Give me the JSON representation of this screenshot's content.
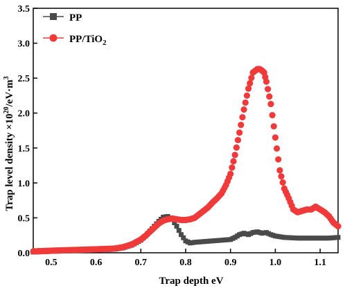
{
  "colors": {
    "PP": "#4a4a4a",
    "PP_TiO2": "#f03a3a"
  },
  "legend": {
    "pp_label": "PP",
    "tio2_prefix": "PP/TiO",
    "tio2_sub": "2"
  },
  "axes": {
    "x_title": "Trap depth eV",
    "y_title_pre": "Trap level density ×10",
    "y_title_sup1": "20",
    "y_title_mid": "/eV·m",
    "y_title_sup2": "3"
  },
  "chart_data": {
    "type": "scatter",
    "xlabel": "Trap depth eV",
    "ylabel": "Trap level density ×10^20/eV·m^3",
    "xlim": [
      0.46,
      1.14
    ],
    "ylim": [
      0.0,
      3.5
    ],
    "xticks": [
      0.5,
      0.6,
      0.7,
      0.8,
      0.9,
      1.0,
      1.1
    ],
    "yticks": [
      0.0,
      0.5,
      1.0,
      1.5,
      2.0,
      2.5,
      3.0,
      3.5
    ],
    "legend_position": "top-left",
    "grid": false,
    "series": [
      {
        "name": "PP",
        "marker": "square",
        "x": [
          0.46,
          0.5,
          0.55,
          0.6,
          0.64,
          0.66,
          0.68,
          0.7,
          0.71,
          0.72,
          0.73,
          0.74,
          0.75,
          0.76,
          0.77,
          0.78,
          0.79,
          0.8,
          0.81,
          0.82,
          0.84,
          0.86,
          0.88,
          0.9,
          0.91,
          0.92,
          0.93,
          0.94,
          0.95,
          0.96,
          0.97,
          0.98,
          0.99,
          1.0,
          1.02,
          1.05,
          1.08,
          1.1,
          1.12,
          1.14
        ],
        "y": [
          0.01,
          0.02,
          0.03,
          0.04,
          0.05,
          0.07,
          0.11,
          0.18,
          0.24,
          0.31,
          0.38,
          0.45,
          0.51,
          0.52,
          0.48,
          0.38,
          0.26,
          0.17,
          0.14,
          0.15,
          0.16,
          0.17,
          0.18,
          0.19,
          0.22,
          0.26,
          0.28,
          0.26,
          0.29,
          0.3,
          0.28,
          0.29,
          0.26,
          0.24,
          0.22,
          0.21,
          0.21,
          0.21,
          0.21,
          0.22
        ]
      },
      {
        "name": "PP/TiO2",
        "marker": "circle",
        "x": [
          0.46,
          0.5,
          0.55,
          0.6,
          0.64,
          0.66,
          0.68,
          0.7,
          0.71,
          0.72,
          0.73,
          0.74,
          0.75,
          0.76,
          0.77,
          0.78,
          0.79,
          0.8,
          0.81,
          0.82,
          0.83,
          0.84,
          0.85,
          0.86,
          0.87,
          0.88,
          0.89,
          0.9,
          0.91,
          0.92,
          0.93,
          0.94,
          0.95,
          0.96,
          0.965,
          0.97,
          0.975,
          0.98,
          0.99,
          1.0,
          1.01,
          1.02,
          1.03,
          1.04,
          1.05,
          1.06,
          1.07,
          1.08,
          1.09,
          1.1,
          1.11,
          1.12,
          1.13,
          1.14
        ],
        "y": [
          0.02,
          0.03,
          0.04,
          0.05,
          0.06,
          0.08,
          0.12,
          0.19,
          0.24,
          0.3,
          0.36,
          0.42,
          0.46,
          0.48,
          0.49,
          0.48,
          0.47,
          0.47,
          0.48,
          0.5,
          0.55,
          0.6,
          0.65,
          0.72,
          0.78,
          0.85,
          0.97,
          1.13,
          1.4,
          1.72,
          2.05,
          2.35,
          2.58,
          2.63,
          2.63,
          2.61,
          2.58,
          2.45,
          2.13,
          1.65,
          1.18,
          0.92,
          0.78,
          0.62,
          0.58,
          0.6,
          0.62,
          0.62,
          0.66,
          0.62,
          0.58,
          0.52,
          0.43,
          0.38
        ]
      }
    ]
  }
}
